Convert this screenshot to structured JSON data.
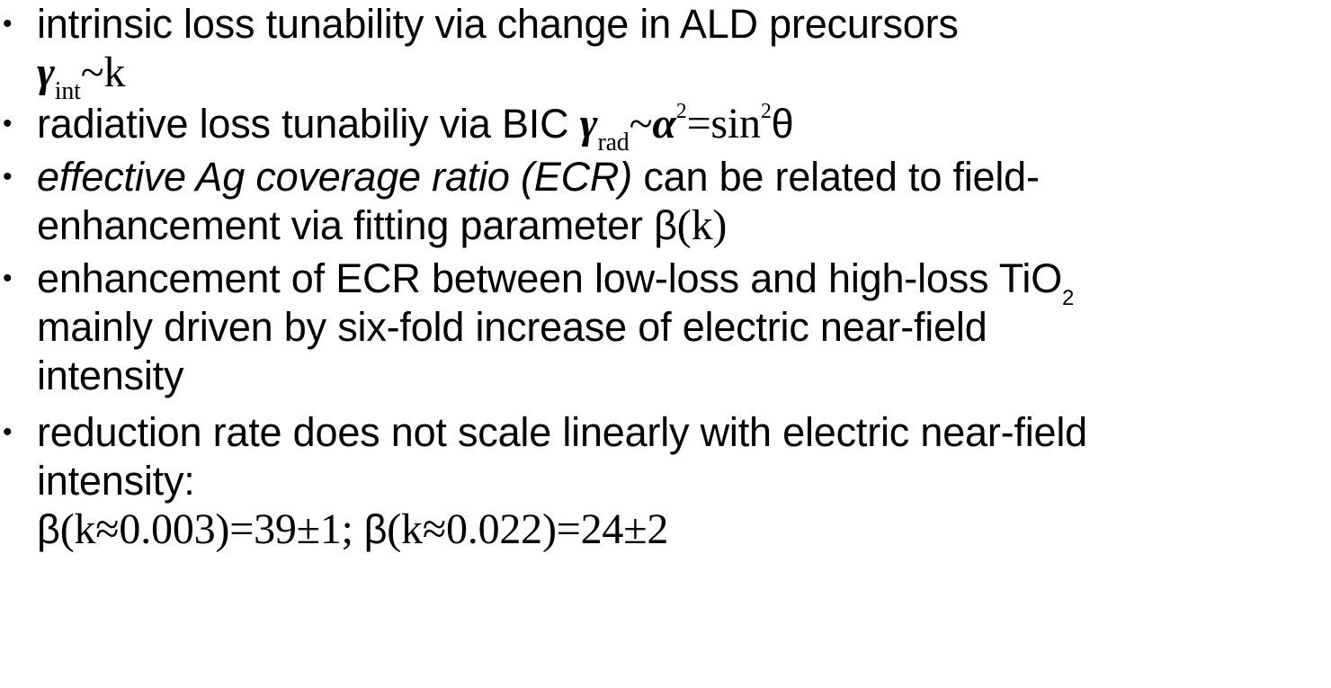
{
  "bullets": [
    {
      "text": "intrinsic loss tunability via change in ALD precursors",
      "formula": {
        "symbol": "γ",
        "subscript": "int",
        "rest": "~k"
      }
    },
    {
      "text": "radiative loss tunabiliy via BIC ",
      "formula": {
        "symbol": "γ",
        "subscript": "rad",
        "tilde": "~",
        "alpha": "α",
        "alpha_sup": "2",
        "eq": "=sin",
        "sin_sup": "2",
        "theta": "θ"
      }
    },
    {
      "italic_text": "effective Ag coverage ratio (ECR)",
      "text_line1": " can be related to field-",
      "text_line2": "enhancement via fitting parameter ",
      "beta": "β",
      "beta_arg": "(k)"
    },
    {
      "text_line1": "enhancement of ECR between low-loss and high-loss TiO",
      "chem_subscript": "2",
      "text_line2": "mainly driven by six-fold increase of electric near-field",
      "text_line3": "intensity"
    },
    {
      "text_line1": "reduction rate does not scale linearly with electric near-field",
      "text_line2": "intensity:",
      "beta1": "β",
      "formula1": "(k≈0.003)=39±1; ",
      "beta2": "β",
      "formula2": "(k≈0.022)=24±2"
    }
  ]
}
